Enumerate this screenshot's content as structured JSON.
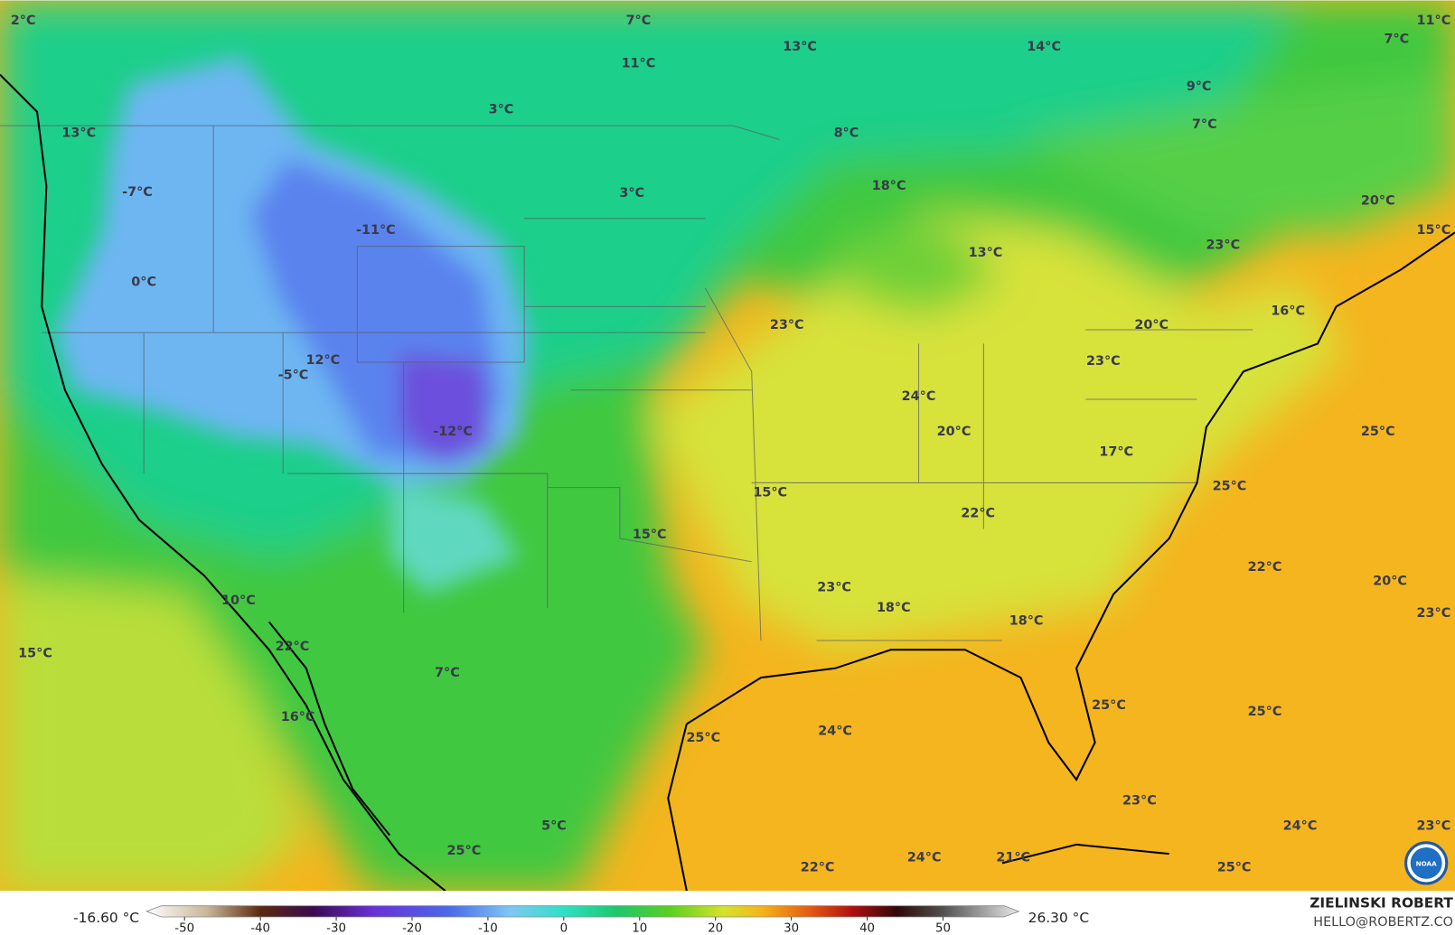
{
  "map": {
    "labels": [
      "2°C",
      "7°C",
      "11°C",
      "7°C",
      "13°C",
      "14°C",
      "11°C",
      "9°C",
      "3°C",
      "7°C",
      "13°C",
      "8°C",
      "18°C",
      "-7°C",
      "3°C",
      "20°C",
      "-11°C",
      "15°C",
      "23°C",
      "13°C",
      "0°C",
      "16°C",
      "23°C",
      "20°C",
      "12°C",
      "23°C",
      "-5°C",
      "24°C",
      "25°C",
      "-12°C",
      "20°C",
      "17°C",
      "25°C",
      "15°C",
      "22°C",
      "15°C",
      "22°C",
      "20°C",
      "23°C",
      "10°C",
      "18°C",
      "23°C",
      "18°C",
      "22°C",
      "15°C",
      "7°C",
      "25°C",
      "25°C",
      "16°C",
      "24°C",
      "25°C",
      "23°C",
      "5°C",
      "24°C",
      "23°C",
      "25°C",
      "24°C",
      "21°C",
      "22°C",
      "25°C"
    ],
    "colorbar": {
      "min_label": "-16.60 °C",
      "max_label": "26.30 °C",
      "lim": [
        -55,
        60
      ],
      "ticks": [
        -50,
        -40,
        -30,
        -20,
        -10,
        0,
        10,
        20,
        30,
        40,
        50
      ]
    },
    "credit": {
      "name": "ZIELINSKI ROBERT",
      "email": "HELLO@ROBERTZ.CO"
    },
    "logo": "NOAA"
  }
}
